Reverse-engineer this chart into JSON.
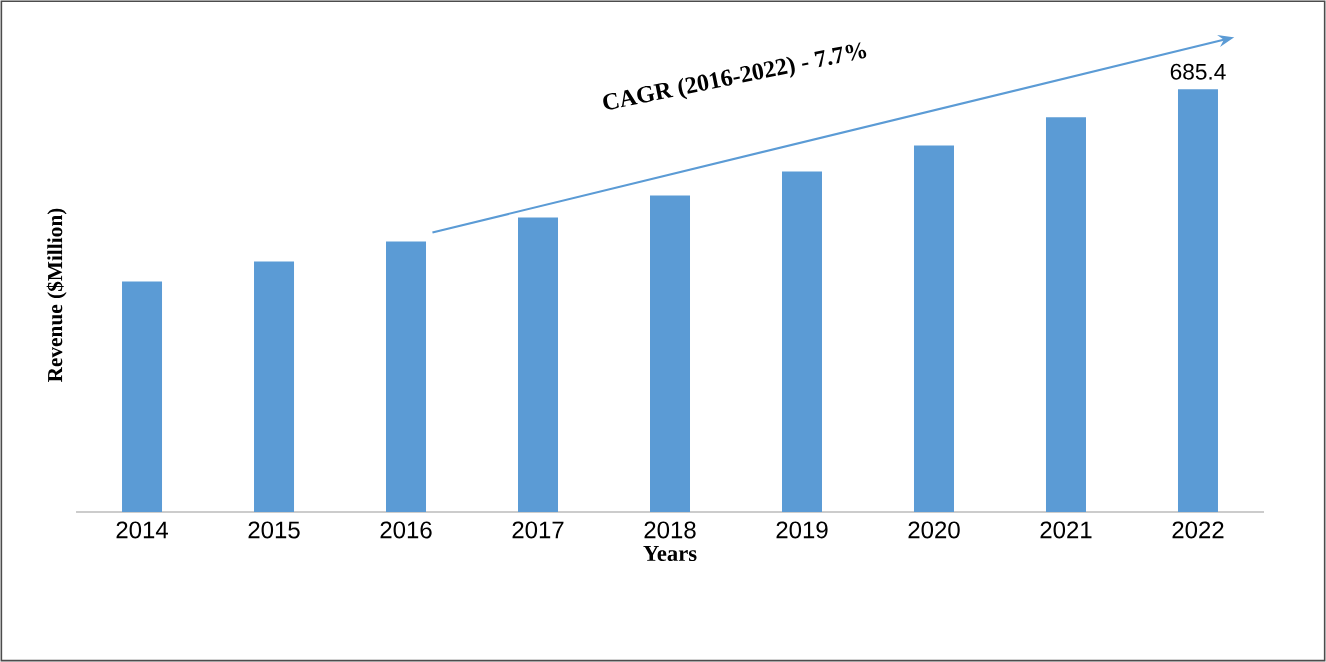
{
  "chart_data": {
    "type": "bar",
    "xlabel": "Years",
    "ylabel": "Revenue ($Million)",
    "categories": [
      "2014",
      "2015",
      "2016",
      "2017",
      "2018",
      "2019",
      "2020",
      "2021",
      "2022"
    ],
    "values": [
      373.6,
      406,
      438.5,
      477.5,
      513,
      552,
      594,
      640,
      685.4
    ],
    "value_labels": [
      null,
      null,
      null,
      null,
      null,
      null,
      null,
      null,
      "685.4"
    ],
    "color": "#5b9bd5",
    "annotations": [
      "CAGR (2016-2022) - 7.7%"
    ]
  }
}
